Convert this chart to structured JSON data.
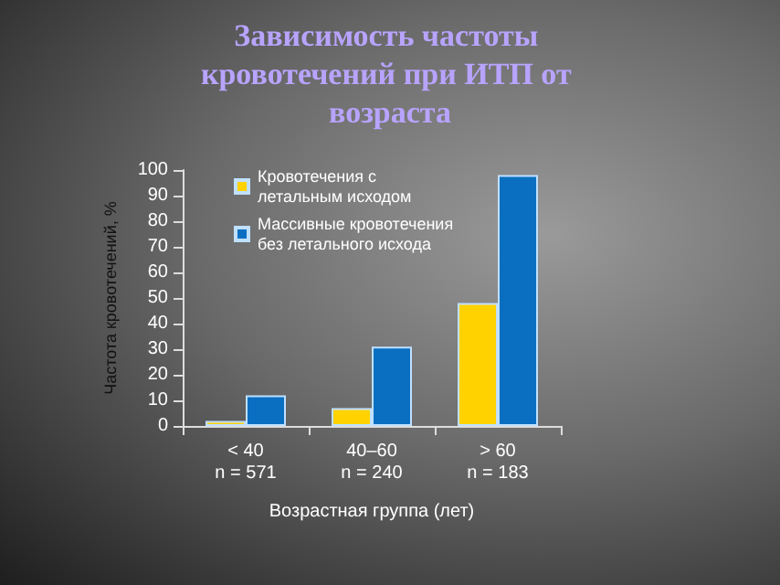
{
  "chart_data": {
    "type": "bar",
    "title": "Зависимость частоты кровотечений при ИТП от возраста",
    "xlabel": "Возрастная группа (лет)",
    "ylabel": "Частота кровотечений, %",
    "categories": [
      "< 40\nn = 571",
      "40–60\nn = 240",
      "> 60\nn = 183"
    ],
    "series": [
      {
        "name": "Кровотечения с\nлетальным исходом",
        "color": "#ffd200",
        "values": [
          2,
          7,
          48
        ]
      },
      {
        "name": "Массивные кровотечения\nбез летального исхода",
        "color": "#0a6fc0",
        "values": [
          12,
          31,
          98
        ]
      }
    ],
    "ylim": [
      0,
      100
    ],
    "yticks": [
      0,
      10,
      20,
      30,
      40,
      50,
      60,
      70,
      80,
      90,
      100
    ],
    "grid": false,
    "legend": "top"
  }
}
